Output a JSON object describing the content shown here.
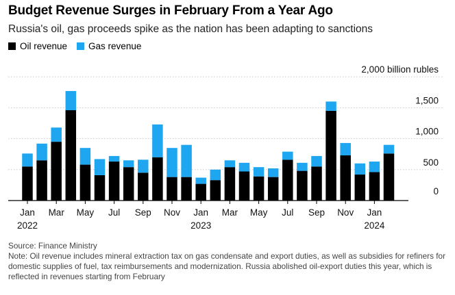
{
  "chart_data": {
    "type": "bar",
    "stacked": true,
    "title": "Budget Revenue Surges in February From a Year Ago",
    "subtitle": "Russia's oil, gas proceeds spike as the nation has been adapting to sanctions",
    "ylabel": "",
    "unit_label": "2,000 billion rubles",
    "ylim": [
      0,
      2000
    ],
    "y_ticks": [
      0,
      500,
      1000,
      1500
    ],
    "y_tick_labels": [
      "0",
      "500",
      "1,000",
      "1,500"
    ],
    "grid": true,
    "legend_position": "top-left",
    "categories": [
      "Jan 2022",
      "Feb 2022",
      "Mar 2022",
      "Apr 2022",
      "May 2022",
      "Jun 2022",
      "Jul 2022",
      "Aug 2022",
      "Sep 2022",
      "Oct 2022",
      "Nov 2022",
      "Dec 2022",
      "Jan 2023",
      "Feb 2023",
      "Mar 2023",
      "Apr 2023",
      "May 2023",
      "Jun 2023",
      "Jul 2023",
      "Aug 2023",
      "Sep 2023",
      "Oct 2023",
      "Nov 2023",
      "Dec 2023",
      "Jan 2024",
      "Feb 2024"
    ],
    "x_tick_labels": [
      {
        "index": 0,
        "month": "Jan",
        "year": "2022"
      },
      {
        "index": 2,
        "month": "Mar",
        "year": ""
      },
      {
        "index": 4,
        "month": "May",
        "year": ""
      },
      {
        "index": 6,
        "month": "Jul",
        "year": ""
      },
      {
        "index": 8,
        "month": "Sep",
        "year": ""
      },
      {
        "index": 10,
        "month": "Nov",
        "year": ""
      },
      {
        "index": 12,
        "month": "Jan",
        "year": "2023"
      },
      {
        "index": 14,
        "month": "Mar",
        "year": ""
      },
      {
        "index": 16,
        "month": "May",
        "year": ""
      },
      {
        "index": 18,
        "month": "Jul",
        "year": ""
      },
      {
        "index": 20,
        "month": "Sep",
        "year": ""
      },
      {
        "index": 22,
        "month": "Nov",
        "year": ""
      },
      {
        "index": 24,
        "month": "Jan",
        "year": "2024"
      }
    ],
    "series": [
      {
        "name": "Oil revenue",
        "color": "#000000",
        "values": [
          550,
          650,
          950,
          1460,
          580,
          410,
          630,
          540,
          450,
          700,
          380,
          380,
          270,
          330,
          540,
          470,
          390,
          380,
          660,
          480,
          550,
          1450,
          730,
          420,
          460,
          760
        ]
      },
      {
        "name": "Gas revenue",
        "color": "#1EA7F0",
        "values": [
          210,
          270,
          230,
          310,
          270,
          260,
          90,
          110,
          210,
          530,
          470,
          520,
          100,
          170,
          110,
          140,
          150,
          140,
          130,
          130,
          170,
          150,
          200,
          180,
          170,
          140
        ]
      }
    ]
  },
  "footer": {
    "source": "Source: Finance Ministry",
    "note": "Note: Oil revenue includes mineral extraction tax on gas condensate and export duties, as well as subsidies for refiners for domestic supplies of fuel, tax reimbursements and modernization. Russia abolished oil-export duties this year, which is reflected in revenues starting from February"
  }
}
